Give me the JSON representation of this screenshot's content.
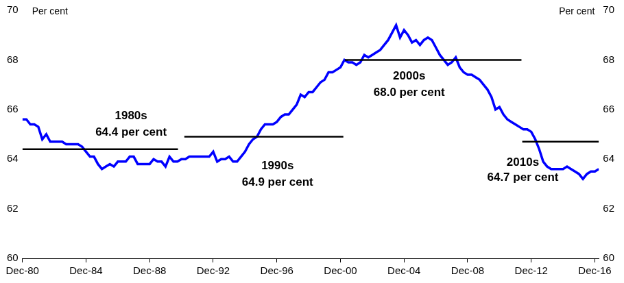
{
  "chart_data": {
    "type": "line",
    "ylabel": "Per cent",
    "y2label": "Per cent",
    "color": "#0000ff",
    "grid": false,
    "x": [
      1980.917,
      1981.167,
      1981.417,
      1981.667,
      1981.917,
      1982.167,
      1982.417,
      1982.667,
      1982.917,
      1983.167,
      1983.417,
      1983.667,
      1983.917,
      1984.167,
      1984.417,
      1984.667,
      1984.917,
      1985.167,
      1985.417,
      1985.667,
      1985.917,
      1986.167,
      1986.417,
      1986.667,
      1986.917,
      1987.167,
      1987.417,
      1987.667,
      1987.917,
      1988.167,
      1988.417,
      1988.667,
      1988.917,
      1989.167,
      1989.417,
      1989.667,
      1989.917,
      1990.167,
      1990.417,
      1990.667,
      1990.917,
      1991.167,
      1991.417,
      1991.667,
      1991.917,
      1992.167,
      1992.417,
      1992.667,
      1992.917,
      1993.167,
      1993.417,
      1993.667,
      1993.917,
      1994.167,
      1994.417,
      1994.667,
      1994.917,
      1995.167,
      1995.417,
      1995.667,
      1995.917,
      1996.167,
      1996.417,
      1996.667,
      1996.917,
      1997.167,
      1997.417,
      1997.667,
      1997.917,
      1998.167,
      1998.417,
      1998.667,
      1998.917,
      1999.167,
      1999.417,
      1999.667,
      1999.917,
      2000.167,
      2000.417,
      2000.667,
      2000.917,
      2001.167,
      2001.417,
      2001.667,
      2001.917,
      2002.167,
      2002.417,
      2002.667,
      2002.917,
      2003.167,
      2003.417,
      2003.667,
      2003.917,
      2004.167,
      2004.417,
      2004.667,
      2004.917,
      2005.167,
      2005.417,
      2005.667,
      2005.917,
      2006.167,
      2006.417,
      2006.667,
      2006.917,
      2007.167,
      2007.417,
      2007.667,
      2007.917,
      2008.167,
      2008.417,
      2008.667,
      2008.917,
      2009.167,
      2009.417,
      2009.667,
      2009.917,
      2010.167,
      2010.417,
      2010.667,
      2010.917,
      2011.167,
      2011.417,
      2011.667,
      2011.917,
      2012.167,
      2012.417,
      2012.667,
      2012.917,
      2013.167,
      2013.417,
      2013.667,
      2013.917,
      2014.167,
      2014.417,
      2014.667,
      2014.917,
      2015.167,
      2015.417,
      2015.667,
      2015.917,
      2016.167,
      2016.417,
      2016.667,
      2016.917,
      2017.167
    ],
    "values": [
      65.6,
      65.6,
      65.4,
      65.4,
      65.3,
      64.8,
      65.0,
      64.7,
      64.7,
      64.7,
      64.7,
      64.6,
      64.6,
      64.6,
      64.6,
      64.5,
      64.3,
      64.1,
      64.1,
      63.8,
      63.6,
      63.7,
      63.8,
      63.7,
      63.9,
      63.9,
      63.9,
      64.1,
      64.1,
      63.8,
      63.8,
      63.8,
      63.8,
      64.0,
      63.9,
      63.9,
      63.7,
      64.1,
      63.9,
      63.9,
      64.0,
      64.0,
      64.1,
      64.1,
      64.1,
      64.1,
      64.1,
      64.1,
      64.3,
      63.9,
      64.0,
      64.0,
      64.1,
      63.9,
      63.9,
      64.1,
      64.3,
      64.6,
      64.8,
      64.9,
      65.2,
      65.4,
      65.4,
      65.4,
      65.5,
      65.7,
      65.8,
      65.8,
      66.0,
      66.2,
      66.6,
      66.5,
      66.7,
      66.7,
      66.9,
      67.1,
      67.2,
      67.5,
      67.5,
      67.6,
      67.7,
      68.0,
      67.9,
      67.9,
      67.8,
      67.9,
      68.2,
      68.1,
      68.2,
      68.3,
      68.4,
      68.6,
      68.8,
      69.1,
      69.4,
      68.9,
      69.2,
      69.0,
      68.7,
      68.8,
      68.6,
      68.8,
      68.9,
      68.8,
      68.5,
      68.2,
      68.0,
      67.8,
      67.9,
      68.1,
      67.7,
      67.5,
      67.4,
      67.4,
      67.3,
      67.2,
      67.0,
      66.8,
      66.5,
      66.0,
      66.1,
      65.8,
      65.6,
      65.5,
      65.4,
      65.3,
      65.2,
      65.2,
      65.1,
      64.8,
      64.4,
      63.9,
      63.7,
      63.6,
      63.6,
      63.6,
      63.6,
      63.7,
      63.6,
      63.5,
      63.4,
      63.2,
      63.4,
      63.5,
      63.5,
      63.6
    ],
    "xlim": [
      1980.917,
      2017.167
    ],
    "xticks": [
      {
        "value": 1980.917,
        "label": "Dec-80"
      },
      {
        "value": 1984.917,
        "label": "Dec-84"
      },
      {
        "value": 1988.917,
        "label": "Dec-88"
      },
      {
        "value": 1992.917,
        "label": "Dec-92"
      },
      {
        "value": 1996.917,
        "label": "Dec-96"
      },
      {
        "value": 2000.917,
        "label": "Dec-00"
      },
      {
        "value": 2004.917,
        "label": "Dec-04"
      },
      {
        "value": 2008.917,
        "label": "Dec-08"
      },
      {
        "value": 2012.917,
        "label": "Dec-12"
      },
      {
        "value": 2016.917,
        "label": "Dec-16"
      }
    ],
    "ylim": [
      60,
      70
    ],
    "yticks": [
      60,
      62,
      64,
      66,
      68,
      70
    ],
    "y2lim": [
      60,
      70
    ],
    "y2ticks": [
      60,
      62,
      64,
      66,
      68,
      70
    ],
    "annotations": [
      {
        "label": "1980s",
        "text": "64.4 per cent",
        "value": 64.4,
        "x": [
          1980.917,
          1990.7
        ]
      },
      {
        "label": "1990s",
        "text": "64.9 per cent",
        "value": 64.9,
        "x": [
          1991.1,
          2001.1
        ]
      },
      {
        "label": "2000s",
        "text": "68.0 per cent",
        "value": 68.0,
        "x": [
          2001.2,
          2012.3
        ]
      },
      {
        "label": "2010s",
        "text": "64.7 per cent",
        "value": 64.7,
        "x": [
          2012.35,
          2017.167
        ]
      }
    ]
  }
}
